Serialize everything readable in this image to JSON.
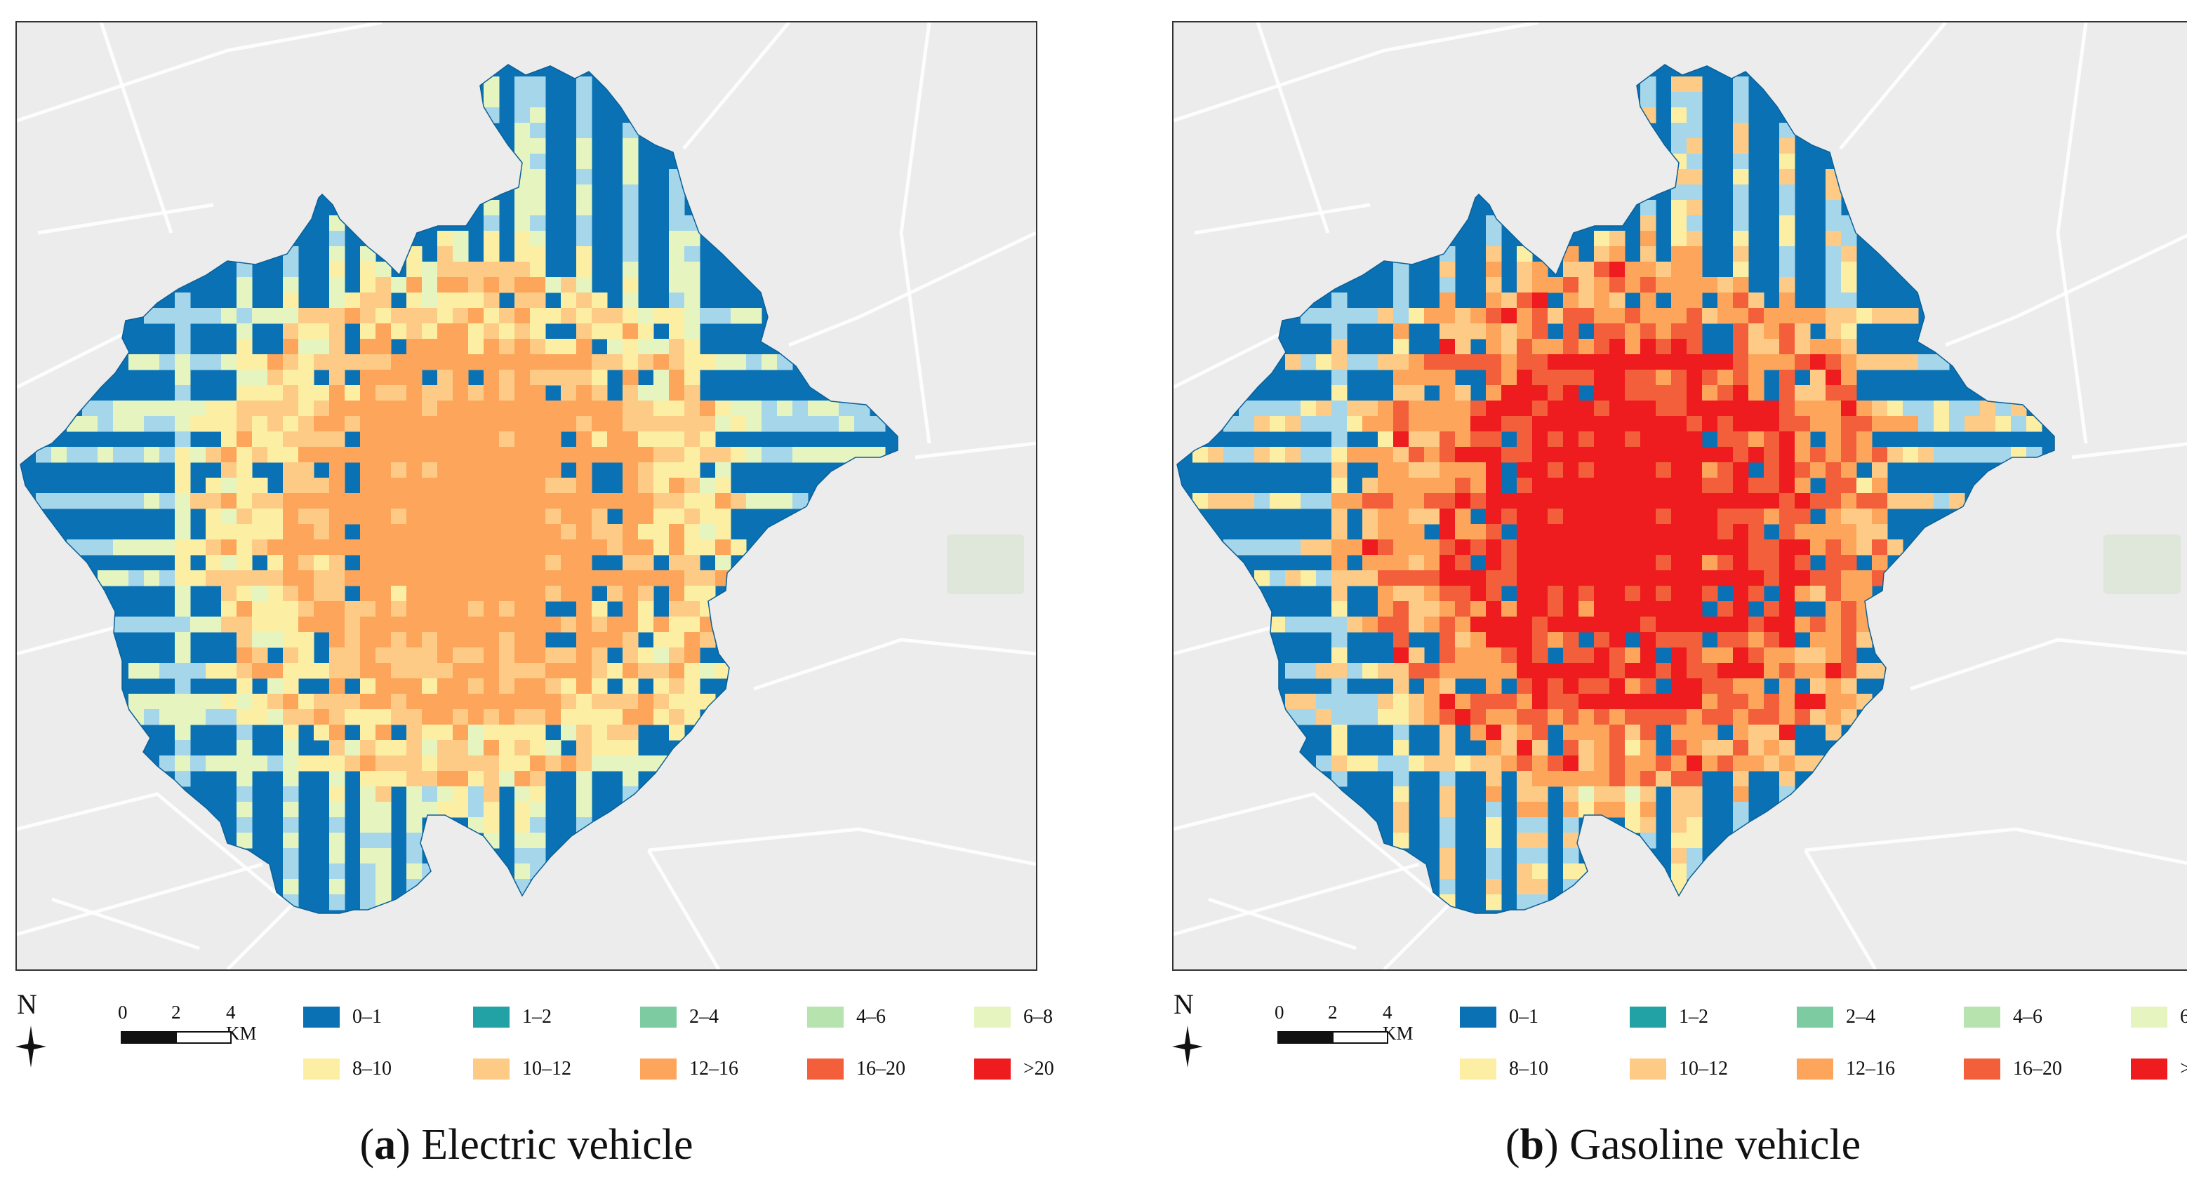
{
  "panels": [
    {
      "id": "a",
      "caption_letter": "a",
      "caption_text": "Electric vehicle",
      "intensity": "electric"
    },
    {
      "id": "b",
      "caption_letter": "b",
      "caption_text": "Gasoline vehicle",
      "intensity": "gasoline"
    }
  ],
  "north_label": "N",
  "scale": {
    "ticks": [
      "0",
      "2",
      "4 KM"
    ],
    "units": "KM"
  },
  "legend": {
    "classes": [
      {
        "label": "0–1",
        "color": "#0a72b4"
      },
      {
        "label": "1–2",
        "color": "#23a2a6"
      },
      {
        "label": "2–4",
        "color": "#7dcba0"
      },
      {
        "label": "4–6",
        "color": "#b7e4ae"
      },
      {
        "label": "6–8",
        "color": "#e6f5c0"
      },
      {
        "label": "8–10",
        "color": "#fcefa4"
      },
      {
        "label": "10–12",
        "color": "#fdcb86"
      },
      {
        "label": "12–16",
        "color": "#fca55b"
      },
      {
        "label": "16–20",
        "color": "#f35f3b"
      },
      {
        "label": ">20",
        "color": "#ee1b1f"
      }
    ],
    "road_cell_color": "#a6d6ea",
    "basemap_color": "#ececec"
  }
}
